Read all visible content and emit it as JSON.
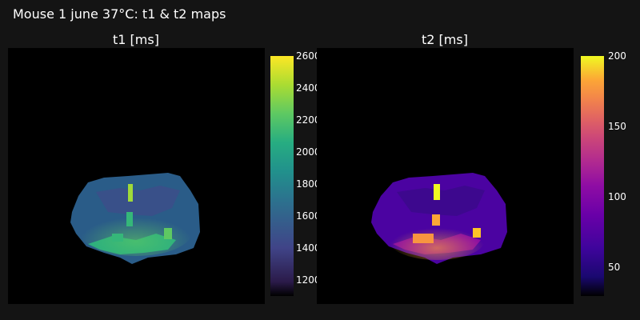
{
  "figure": {
    "title": "Mouse 1 june 37°C: t1 & t2 maps"
  },
  "panels": [
    {
      "subtitle": "t1 [ms]",
      "colormap": "viridis",
      "colorbar": {
        "range": [
          1100,
          2600
        ],
        "ticks": [
          "2600",
          "2400",
          "2200",
          "2000",
          "1800",
          "1600",
          "1400",
          "1200"
        ]
      }
    },
    {
      "subtitle": "t2 [ms]",
      "colormap": "plasma",
      "colorbar": {
        "range": [
          30,
          200
        ],
        "ticks": [
          "200",
          "150",
          "100",
          "50"
        ]
      }
    }
  ]
}
